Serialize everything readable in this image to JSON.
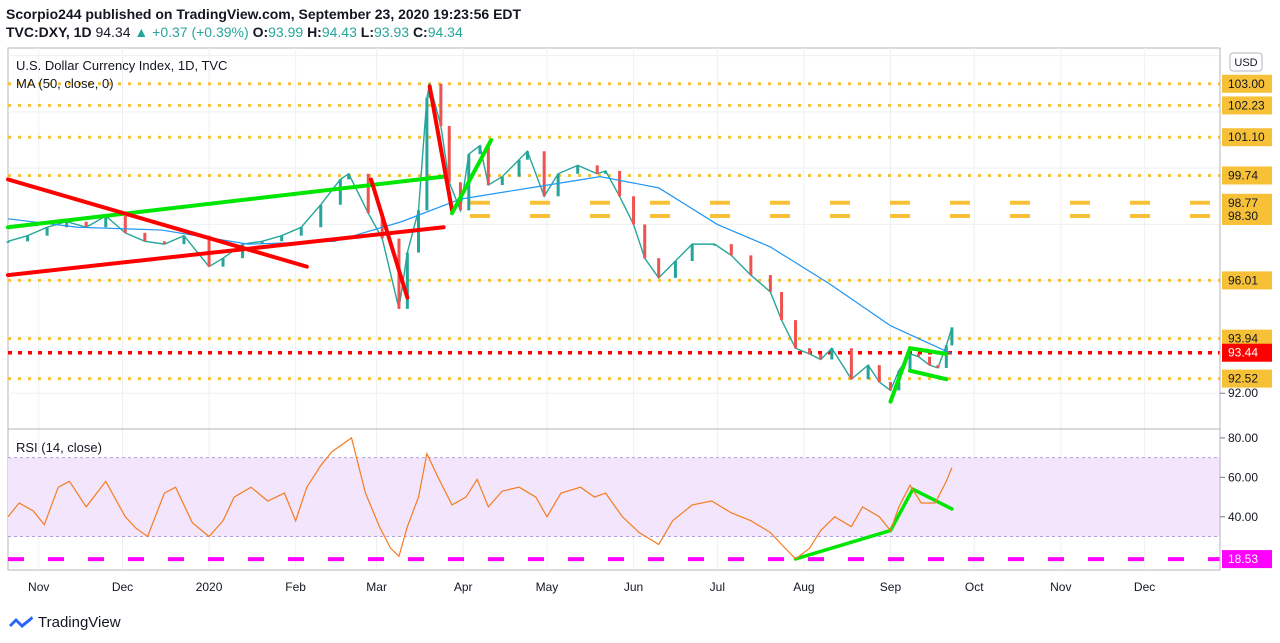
{
  "header": {
    "published": "Scorpio244 published on TradingView.com, September 23, 2020 19:23:56 EDT",
    "symbol": "TVC:DXY, 1D",
    "last": "94.34",
    "change_arrow": "▲",
    "change": "+0.37 (+0.39%)",
    "o_label": "O:",
    "o_value": "93.99",
    "h_label": "H:",
    "h_value": "94.43",
    "l_label": "L:",
    "l_value": "93.93",
    "c_label": "C:",
    "c_value": "94.34"
  },
  "footer": {
    "brand": "TradingView"
  },
  "chart_data": [
    {
      "type": "candlestick",
      "title": "U.S. Dollar Currency Index, 1D, TVC",
      "indicator_label": "MA (50, close, 0)",
      "currency_badge": "USD",
      "ylim": [
        90.8,
        104.2
      ],
      "xlim": [
        "2019-10-21",
        "2020-12-28"
      ],
      "x_ticks": [
        {
          "date": "2019-11-01",
          "label": "Nov"
        },
        {
          "date": "2019-12-01",
          "label": "Dec"
        },
        {
          "date": "2020-01-01",
          "label": "2020"
        },
        {
          "date": "2020-02-01",
          "label": "Feb"
        },
        {
          "date": "2020-03-01",
          "label": "Mar"
        },
        {
          "date": "2020-04-01",
          "label": "Apr"
        },
        {
          "date": "2020-05-01",
          "label": "May"
        },
        {
          "date": "2020-06-01",
          "label": "Jun"
        },
        {
          "date": "2020-07-01",
          "label": "Jul"
        },
        {
          "date": "2020-08-01",
          "label": "Aug"
        },
        {
          "date": "2020-09-01",
          "label": "Sep"
        },
        {
          "date": "2020-10-01",
          "label": "Oct"
        },
        {
          "date": "2020-11-01",
          "label": "Nov"
        },
        {
          "date": "2020-12-01",
          "label": "Dec"
        }
      ],
      "price_labels": [
        {
          "value": 103.0,
          "label": "103.00",
          "bg": "#f7c137"
        },
        {
          "value": 102.23,
          "label": "102.23",
          "bg": "#f7c137"
        },
        {
          "value": 101.1,
          "label": "101.10",
          "bg": "#f7c137"
        },
        {
          "value": 99.74,
          "label": "99.74",
          "bg": "#f7c137"
        },
        {
          "value": 98.77,
          "label": "98.77",
          "bg": "#f7c137"
        },
        {
          "value": 98.3,
          "label": "98.30",
          "bg": "#f7c137"
        },
        {
          "value": 96.01,
          "label": "96.01",
          "bg": "#f7c137"
        },
        {
          "value": 93.94,
          "label": "93.94",
          "bg": "#f7c137"
        },
        {
          "value": 93.44,
          "label": "93.44",
          "bg": "#ff0000"
        },
        {
          "value": 92.52,
          "label": "92.52",
          "bg": "#f7c137"
        },
        {
          "value": 92.0,
          "label": "92.00",
          "bg": "none"
        }
      ],
      "dotted_levels": [
        103.0,
        102.23,
        101.1,
        99.74,
        96.01,
        93.94,
        92.52
      ],
      "dashed_levels": [
        98.77,
        98.3
      ],
      "red_dotted_level": 93.44,
      "price_path": [
        [
          "2019-10-21",
          97.4
        ],
        [
          "2019-10-28",
          97.6
        ],
        [
          "2019-11-04",
          97.9
        ],
        [
          "2019-11-11",
          98.1
        ],
        [
          "2019-11-18",
          97.9
        ],
        [
          "2019-11-25",
          98.3
        ],
        [
          "2019-12-02",
          97.7
        ],
        [
          "2019-12-09",
          97.4
        ],
        [
          "2019-12-16",
          97.3
        ],
        [
          "2019-12-23",
          97.6
        ],
        [
          "2020-01-01",
          96.5
        ],
        [
          "2020-01-06",
          96.8
        ],
        [
          "2020-01-13",
          97.3
        ],
        [
          "2020-01-20",
          97.4
        ],
        [
          "2020-01-27",
          97.6
        ],
        [
          "2020-02-03",
          97.9
        ],
        [
          "2020-02-10",
          98.7
        ],
        [
          "2020-02-17",
          99.6
        ],
        [
          "2020-02-20",
          99.8
        ],
        [
          "2020-02-27",
          98.4
        ],
        [
          "2020-03-03",
          97.5
        ],
        [
          "2020-03-09",
          95.0
        ],
        [
          "2020-03-12",
          97.0
        ],
        [
          "2020-03-16",
          98.5
        ],
        [
          "2020-03-19",
          102.5
        ],
        [
          "2020-03-20",
          103.0
        ],
        [
          "2020-03-24",
          101.5
        ],
        [
          "2020-03-27",
          99.5
        ],
        [
          "2020-03-31",
          98.5
        ],
        [
          "2020-04-03",
          100.5
        ],
        [
          "2020-04-07",
          100.8
        ],
        [
          "2020-04-10",
          99.4
        ],
        [
          "2020-04-15",
          99.7
        ],
        [
          "2020-04-21",
          100.3
        ],
        [
          "2020-04-24",
          100.6
        ],
        [
          "2020-04-30",
          99.0
        ],
        [
          "2020-05-05",
          99.8
        ],
        [
          "2020-05-12",
          100.1
        ],
        [
          "2020-05-19",
          99.8
        ],
        [
          "2020-05-22",
          99.9
        ],
        [
          "2020-05-27",
          99.0
        ],
        [
          "2020-06-01",
          98.0
        ],
        [
          "2020-06-05",
          96.8
        ],
        [
          "2020-06-10",
          96.1
        ],
        [
          "2020-06-16",
          96.7
        ],
        [
          "2020-06-22",
          97.3
        ],
        [
          "2020-06-30",
          97.3
        ],
        [
          "2020-07-06",
          96.9
        ],
        [
          "2020-07-13",
          96.2
        ],
        [
          "2020-07-20",
          95.6
        ],
        [
          "2020-07-24",
          94.6
        ],
        [
          "2020-07-29",
          93.6
        ],
        [
          "2020-08-03",
          93.4
        ],
        [
          "2020-08-07",
          93.2
        ],
        [
          "2020-08-11",
          93.6
        ],
        [
          "2020-08-18",
          92.5
        ],
        [
          "2020-08-24",
          93.0
        ],
        [
          "2020-08-28",
          92.4
        ],
        [
          "2020-09-01",
          92.1
        ],
        [
          "2020-09-04",
          92.8
        ],
        [
          "2020-09-08",
          93.4
        ],
        [
          "2020-09-11",
          93.3
        ],
        [
          "2020-09-15",
          93.0
        ],
        [
          "2020-09-18",
          92.9
        ],
        [
          "2020-09-21",
          93.7
        ],
        [
          "2020-09-23",
          94.34
        ]
      ],
      "ma_path": [
        [
          "2019-10-21",
          98.2
        ],
        [
          "2019-11-15",
          97.9
        ],
        [
          "2019-12-15",
          97.8
        ],
        [
          "2020-01-15",
          97.3
        ],
        [
          "2020-02-15",
          97.4
        ],
        [
          "2020-03-10",
          98.1
        ],
        [
          "2020-03-31",
          98.9
        ],
        [
          "2020-04-25",
          99.3
        ],
        [
          "2020-05-20",
          99.7
        ],
        [
          "2020-06-10",
          99.3
        ],
        [
          "2020-07-01",
          98.0
        ],
        [
          "2020-07-20",
          97.2
        ],
        [
          "2020-08-10",
          95.9
        ],
        [
          "2020-09-01",
          94.4
        ],
        [
          "2020-09-23",
          93.4
        ]
      ],
      "trendlines": [
        {
          "color": "#00e600",
          "from": [
            "2019-10-21",
            97.9
          ],
          "to": [
            "2020-03-25",
            99.7
          ]
        },
        {
          "color": "#ff0000",
          "from": [
            "2019-10-21",
            96.2
          ],
          "to": [
            "2020-03-25",
            97.9
          ]
        },
        {
          "color": "#ff0000",
          "from": [
            "2019-10-21",
            99.6
          ],
          "to": [
            "2020-02-05",
            96.5
          ]
        },
        {
          "color": "#ff0000",
          "from": [
            "2020-02-28",
            99.6
          ],
          "to": [
            "2020-03-12",
            95.4
          ]
        },
        {
          "color": "#ff0000",
          "from": [
            "2020-03-20",
            102.9
          ],
          "to": [
            "2020-03-28",
            98.5
          ]
        },
        {
          "color": "#00e600",
          "from": [
            "2020-03-28",
            98.4
          ],
          "to": [
            "2020-04-11",
            101.0
          ]
        },
        {
          "color": "#00e600",
          "from": [
            "2020-09-01",
            91.7
          ],
          "to": [
            "2020-09-08",
            93.6
          ]
        },
        {
          "color": "#00e600",
          "from": [
            "2020-09-08",
            93.6
          ],
          "to": [
            "2020-09-21",
            93.4
          ]
        },
        {
          "color": "#00e600",
          "from": [
            "2020-09-08",
            92.8
          ],
          "to": [
            "2020-09-21",
            92.5
          ]
        }
      ]
    },
    {
      "type": "line",
      "title": "RSI (14, close)",
      "ylim": [
        13,
        83
      ],
      "y_ticks": [
        {
          "value": 80,
          "label": "80.00"
        },
        {
          "value": 60,
          "label": "60.00"
        },
        {
          "value": 40,
          "label": "40.00"
        }
      ],
      "band": [
        30,
        70
      ],
      "level_label": {
        "value": 18.53,
        "label": "18.53",
        "bg": "#ff00ff"
      },
      "series": [
        {
          "line_color": "#f57c20",
          "values": [
            [
              "2019-10-21",
              40
            ],
            [
              "2019-10-25",
              47
            ],
            [
              "2019-10-30",
              43
            ],
            [
              "2019-11-03",
              36
            ],
            [
              "2019-11-08",
              55
            ],
            [
              "2019-11-12",
              58
            ],
            [
              "2019-11-18",
              45
            ],
            [
              "2019-11-25",
              58
            ],
            [
              "2019-12-02",
              40
            ],
            [
              "2019-12-06",
              34
            ],
            [
              "2019-12-10",
              30
            ],
            [
              "2019-12-16",
              52
            ],
            [
              "2019-12-20",
              55
            ],
            [
              "2019-12-26",
              37
            ],
            [
              "2020-01-01",
              30
            ],
            [
              "2020-01-06",
              38
            ],
            [
              "2020-01-10",
              50
            ],
            [
              "2020-01-16",
              55
            ],
            [
              "2020-01-22",
              48
            ],
            [
              "2020-01-28",
              52
            ],
            [
              "2020-02-01",
              38
            ],
            [
              "2020-02-05",
              55
            ],
            [
              "2020-02-10",
              66
            ],
            [
              "2020-02-14",
              73
            ],
            [
              "2020-02-19",
              78
            ],
            [
              "2020-02-21",
              80
            ],
            [
              "2020-02-26",
              52
            ],
            [
              "2020-03-02",
              35
            ],
            [
              "2020-03-06",
              24
            ],
            [
              "2020-03-09",
              20
            ],
            [
              "2020-03-12",
              35
            ],
            [
              "2020-03-16",
              50
            ],
            [
              "2020-03-19",
              72
            ],
            [
              "2020-03-23",
              60
            ],
            [
              "2020-03-28",
              46
            ],
            [
              "2020-04-02",
              50
            ],
            [
              "2020-04-06",
              59
            ],
            [
              "2020-04-10",
              45
            ],
            [
              "2020-04-15",
              53
            ],
            [
              "2020-04-21",
              55
            ],
            [
              "2020-04-27",
              50
            ],
            [
              "2020-05-01",
              40
            ],
            [
              "2020-05-06",
              52
            ],
            [
              "2020-05-13",
              55
            ],
            [
              "2020-05-18",
              50
            ],
            [
              "2020-05-22",
              52
            ],
            [
              "2020-05-28",
              40
            ],
            [
              "2020-06-03",
              32
            ],
            [
              "2020-06-10",
              26
            ],
            [
              "2020-06-15",
              38
            ],
            [
              "2020-06-22",
              46
            ],
            [
              "2020-06-29",
              48
            ],
            [
              "2020-07-06",
              42
            ],
            [
              "2020-07-13",
              38
            ],
            [
              "2020-07-20",
              32
            ],
            [
              "2020-07-24",
              26
            ],
            [
              "2020-07-29",
              18.6
            ],
            [
              "2020-08-03",
              24
            ],
            [
              "2020-08-07",
              33
            ],
            [
              "2020-08-12",
              40
            ],
            [
              "2020-08-18",
              35
            ],
            [
              "2020-08-22",
              45
            ],
            [
              "2020-08-28",
              40
            ],
            [
              "2020-09-01",
              33
            ],
            [
              "2020-09-04",
              45
            ],
            [
              "2020-09-08",
              56
            ],
            [
              "2020-09-12",
              47
            ],
            [
              "2020-09-17",
              47
            ],
            [
              "2020-09-21",
              58
            ],
            [
              "2020-09-23",
              65
            ]
          ]
        }
      ],
      "trendlines": [
        {
          "color": "#00e600",
          "from": [
            "2020-07-29",
            18.6
          ],
          "to": [
            "2020-09-01",
            33
          ]
        },
        {
          "color": "#00e600",
          "from": [
            "2020-09-01",
            33
          ],
          "to": [
            "2020-09-09",
            54
          ]
        },
        {
          "color": "#00e600",
          "from": [
            "2020-09-09",
            54
          ],
          "to": [
            "2020-09-23",
            44
          ]
        }
      ]
    }
  ]
}
